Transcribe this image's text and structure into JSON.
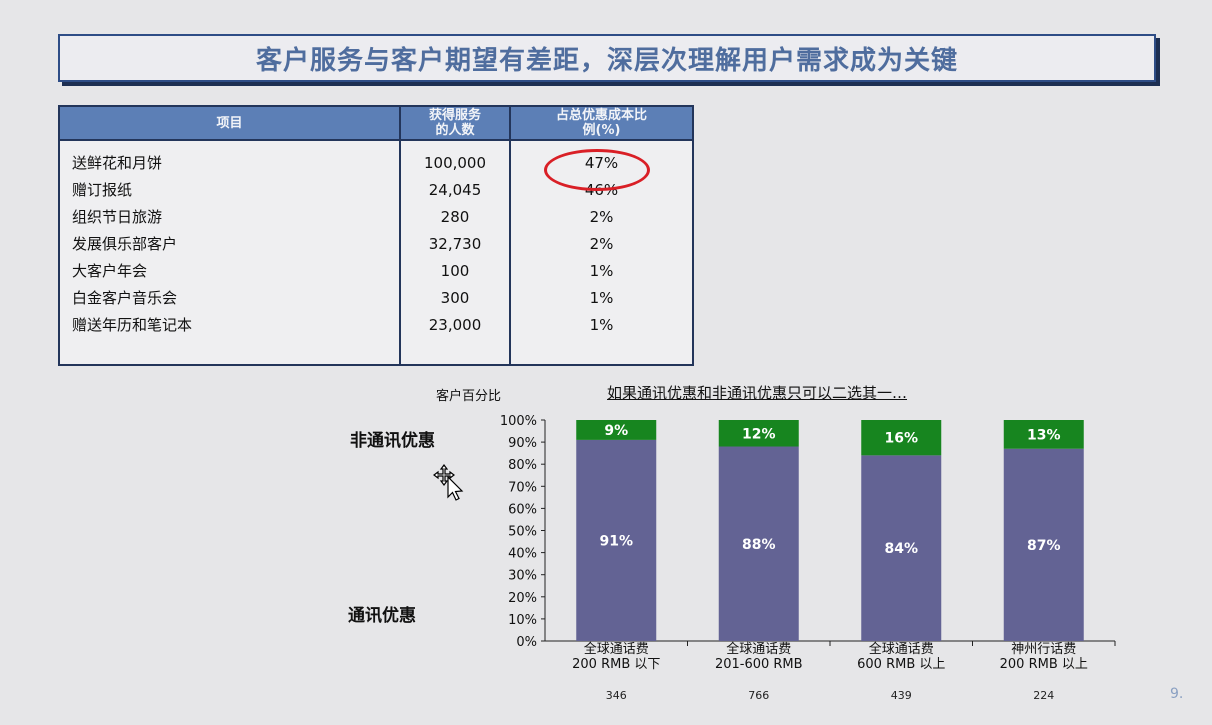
{
  "slide": {
    "title": "客户服务与客户期望有差距，深层次理解用户需求成为关键",
    "page_number": "9."
  },
  "table": {
    "headers": [
      "项目",
      "获得服务的人数",
      "占总优惠成本比例(%)"
    ],
    "header_lines": [
      [
        "项目"
      ],
      [
        "获得服务",
        "的人数"
      ],
      [
        "占总优惠成本比",
        "例(%)"
      ]
    ],
    "rows": [
      {
        "item": "送鲜花和月饼",
        "count": "100,000",
        "pct": "47%"
      },
      {
        "item": "赠订报纸",
        "count": "24,045",
        "pct": "46%"
      },
      {
        "item": "组织节日旅游",
        "count": "280",
        "pct": "2%"
      },
      {
        "item": "发展俱乐部客户",
        "count": "32,730",
        "pct": "2%"
      },
      {
        "item": "大客户年会",
        "count": "100",
        "pct": "1%"
      },
      {
        "item": "白金客户音乐会",
        "count": "300",
        "pct": "1%"
      },
      {
        "item": "赠送年历和笔记本",
        "count": "23,000",
        "pct": "1%"
      }
    ]
  },
  "labels": {
    "customer_percent": "客户百分比",
    "non_comm": "非通讯优惠",
    "comm": "通讯优惠"
  },
  "icons": {
    "cursor": "move-cursor-icon"
  },
  "colors": {
    "title_text": "#4f6d9e",
    "table_header": "#5c7fb6",
    "highlight_circle": "#d91f26",
    "comm_bar": "#636394",
    "non_comm_bar": "#17851f"
  },
  "chart_data": {
    "type": "bar",
    "stacked": true,
    "title": "如果通讯优惠和非通讯优惠只可以二选其一…",
    "ylim": [
      0,
      100
    ],
    "y_ticks": [
      "0%",
      "10%",
      "20%",
      "30%",
      "40%",
      "50%",
      "60%",
      "70%",
      "80%",
      "90%",
      "100%"
    ],
    "categories": [
      [
        "全球通话费",
        "200 RMB 以下"
      ],
      [
        "全球通话费",
        "201-600 RMB"
      ],
      [
        "全球通话费",
        "600 RMB 以上"
      ],
      [
        "神州行话费",
        "200 RMB 以上"
      ]
    ],
    "counts": [
      "346",
      "766",
      "439",
      "224"
    ],
    "series": [
      {
        "values": [
          91,
          88,
          84,
          87
        ],
        "labels": [
          "91%",
          "88%",
          "84%",
          "87%"
        ],
        "color": "#636394"
      },
      {
        "values": [
          9,
          12,
          16,
          13
        ],
        "labels": [
          "9%",
          "12%",
          "16%",
          "13%"
        ],
        "color": "#17851f"
      }
    ]
  }
}
